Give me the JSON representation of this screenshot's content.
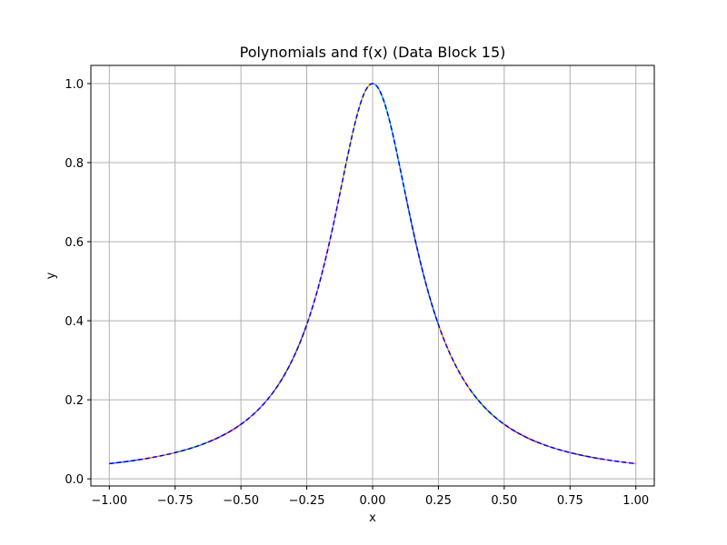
{
  "chart_data": {
    "type": "line",
    "title": "Polynomials and f(x) (Data Block 15)",
    "xlabel": "x",
    "ylabel": "y",
    "xlim": [
      -1.07,
      1.07
    ],
    "ylim": [
      -0.018,
      1.046
    ],
    "xticks": [
      -1.0,
      -0.75,
      -0.5,
      -0.25,
      0.0,
      0.25,
      0.5,
      0.75,
      1.0
    ],
    "xtick_labels": [
      "−1.00",
      "−0.75",
      "−0.50",
      "−0.25",
      "0.00",
      "0.25",
      "0.50",
      "0.75",
      "1.00"
    ],
    "yticks": [
      0.0,
      0.2,
      0.4,
      0.6,
      0.8,
      1.0
    ],
    "ytick_labels": [
      "0.0",
      "0.2",
      "0.4",
      "0.6",
      "0.8",
      "1.0"
    ],
    "grid": true,
    "function": "1/(1+25x^2)",
    "x_range": [
      -1.0,
      1.0
    ],
    "piece_colors": [
      "#1f77b4",
      "#ff7f0e",
      "#2ca02c",
      "#d62728",
      "#9467bd",
      "#8c564b",
      "#e377c2",
      "#bcbd22",
      "#17becf"
    ],
    "piece_width": 0.125,
    "series": [
      {
        "style": "dashed",
        "color": "#0000ff",
        "x": [
          -1.0,
          -0.75,
          -0.5,
          -0.4,
          -0.3,
          -0.25,
          -0.2,
          -0.15,
          -0.1,
          -0.05,
          0.0,
          0.05,
          0.1,
          0.15,
          0.2,
          0.25,
          0.3,
          0.4,
          0.5,
          0.75,
          1.0
        ],
        "y": [
          0.0385,
          0.0664,
          0.1379,
          0.2,
          0.3077,
          0.3902,
          0.5,
          0.64,
          0.8,
          0.9412,
          1.0,
          0.9412,
          0.8,
          0.64,
          0.5,
          0.3902,
          0.3077,
          0.2,
          0.1379,
          0.0664,
          0.0385
        ]
      }
    ]
  }
}
